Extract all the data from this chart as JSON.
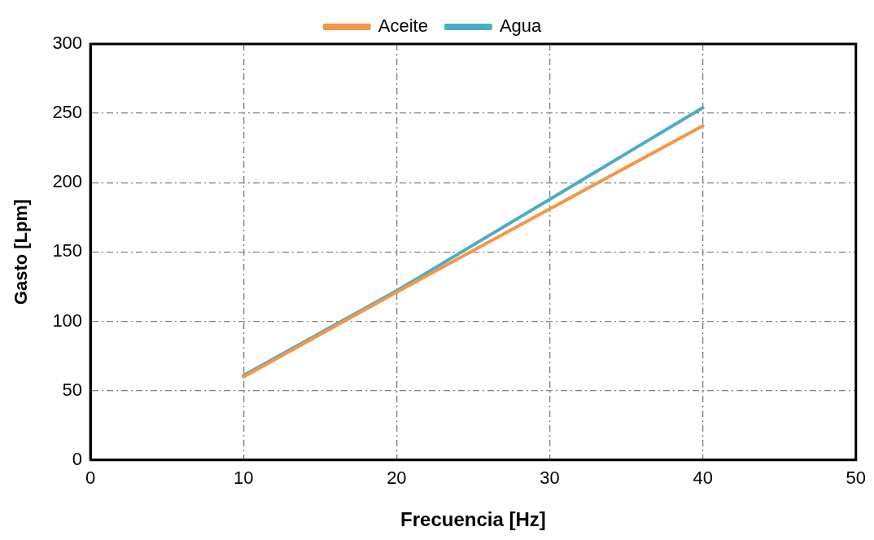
{
  "chart_data": {
    "type": "line",
    "xlabel": "Frecuencia [Hz]",
    "ylabel": "Gasto [Lpm]",
    "x": [
      10,
      20,
      30,
      40
    ],
    "series": [
      {
        "name": "Aceite",
        "color": "#f79646",
        "values": [
          60,
          121,
          181,
          241
        ]
      },
      {
        "name": "Agua",
        "color": "#4bacc6",
        "values": [
          61,
          122,
          188,
          254
        ]
      }
    ],
    "xlim": [
      0,
      50
    ],
    "xticks": [
      0,
      10,
      20,
      30,
      40,
      50
    ],
    "ylim": [
      0,
      300
    ],
    "yticks": [
      0,
      50,
      100,
      150,
      200,
      250,
      300
    ],
    "grid": true,
    "legend": "top",
    "marker": "none",
    "line_style": "solid"
  }
}
